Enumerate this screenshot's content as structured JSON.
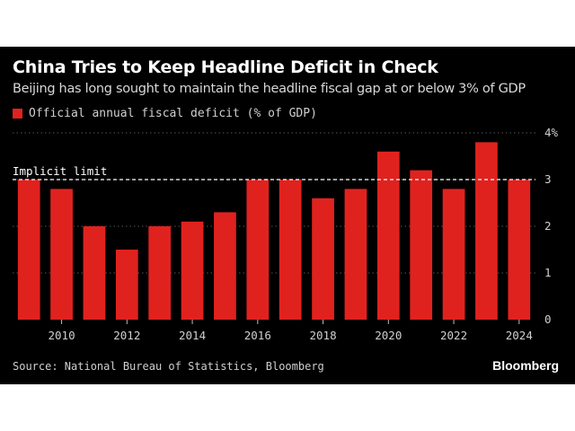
{
  "chart_data": {
    "type": "bar",
    "title": "China Tries to Keep Headline Deficit in Check",
    "subtitle": "Beijing has long sought to maintain the headline fiscal gap at or below 3% of GDP",
    "x": [
      2009,
      2010,
      2011,
      2012,
      2013,
      2014,
      2015,
      2016,
      2017,
      2018,
      2019,
      2020,
      2021,
      2022,
      2023,
      2024
    ],
    "series": [
      {
        "name": "Official annual fiscal deficit (% of GDP)",
        "values": [
          3.0,
          2.8,
          2.0,
          1.5,
          2.0,
          2.1,
          2.3,
          3.0,
          3.0,
          2.6,
          2.8,
          3.6,
          3.2,
          2.8,
          3.8,
          3.0
        ]
      }
    ],
    "xticks": [
      "2010",
      "2012",
      "2014",
      "2016",
      "2018",
      "2020",
      "2022",
      "2024"
    ],
    "yticks": [
      "0",
      "1",
      "2",
      "3",
      "4%"
    ],
    "ylim": [
      0,
      4
    ],
    "annotations": [
      {
        "label": "Implicit limit",
        "y": 3
      }
    ],
    "grid": true,
    "legend_position": "top-left",
    "colors": {
      "bar": "#e0221f",
      "background": "#000000",
      "grid": "#555555",
      "limit_line": "#ffffff"
    }
  },
  "source": "Source: National Bureau of Statistics, Bloomberg",
  "brand": "Bloomberg"
}
